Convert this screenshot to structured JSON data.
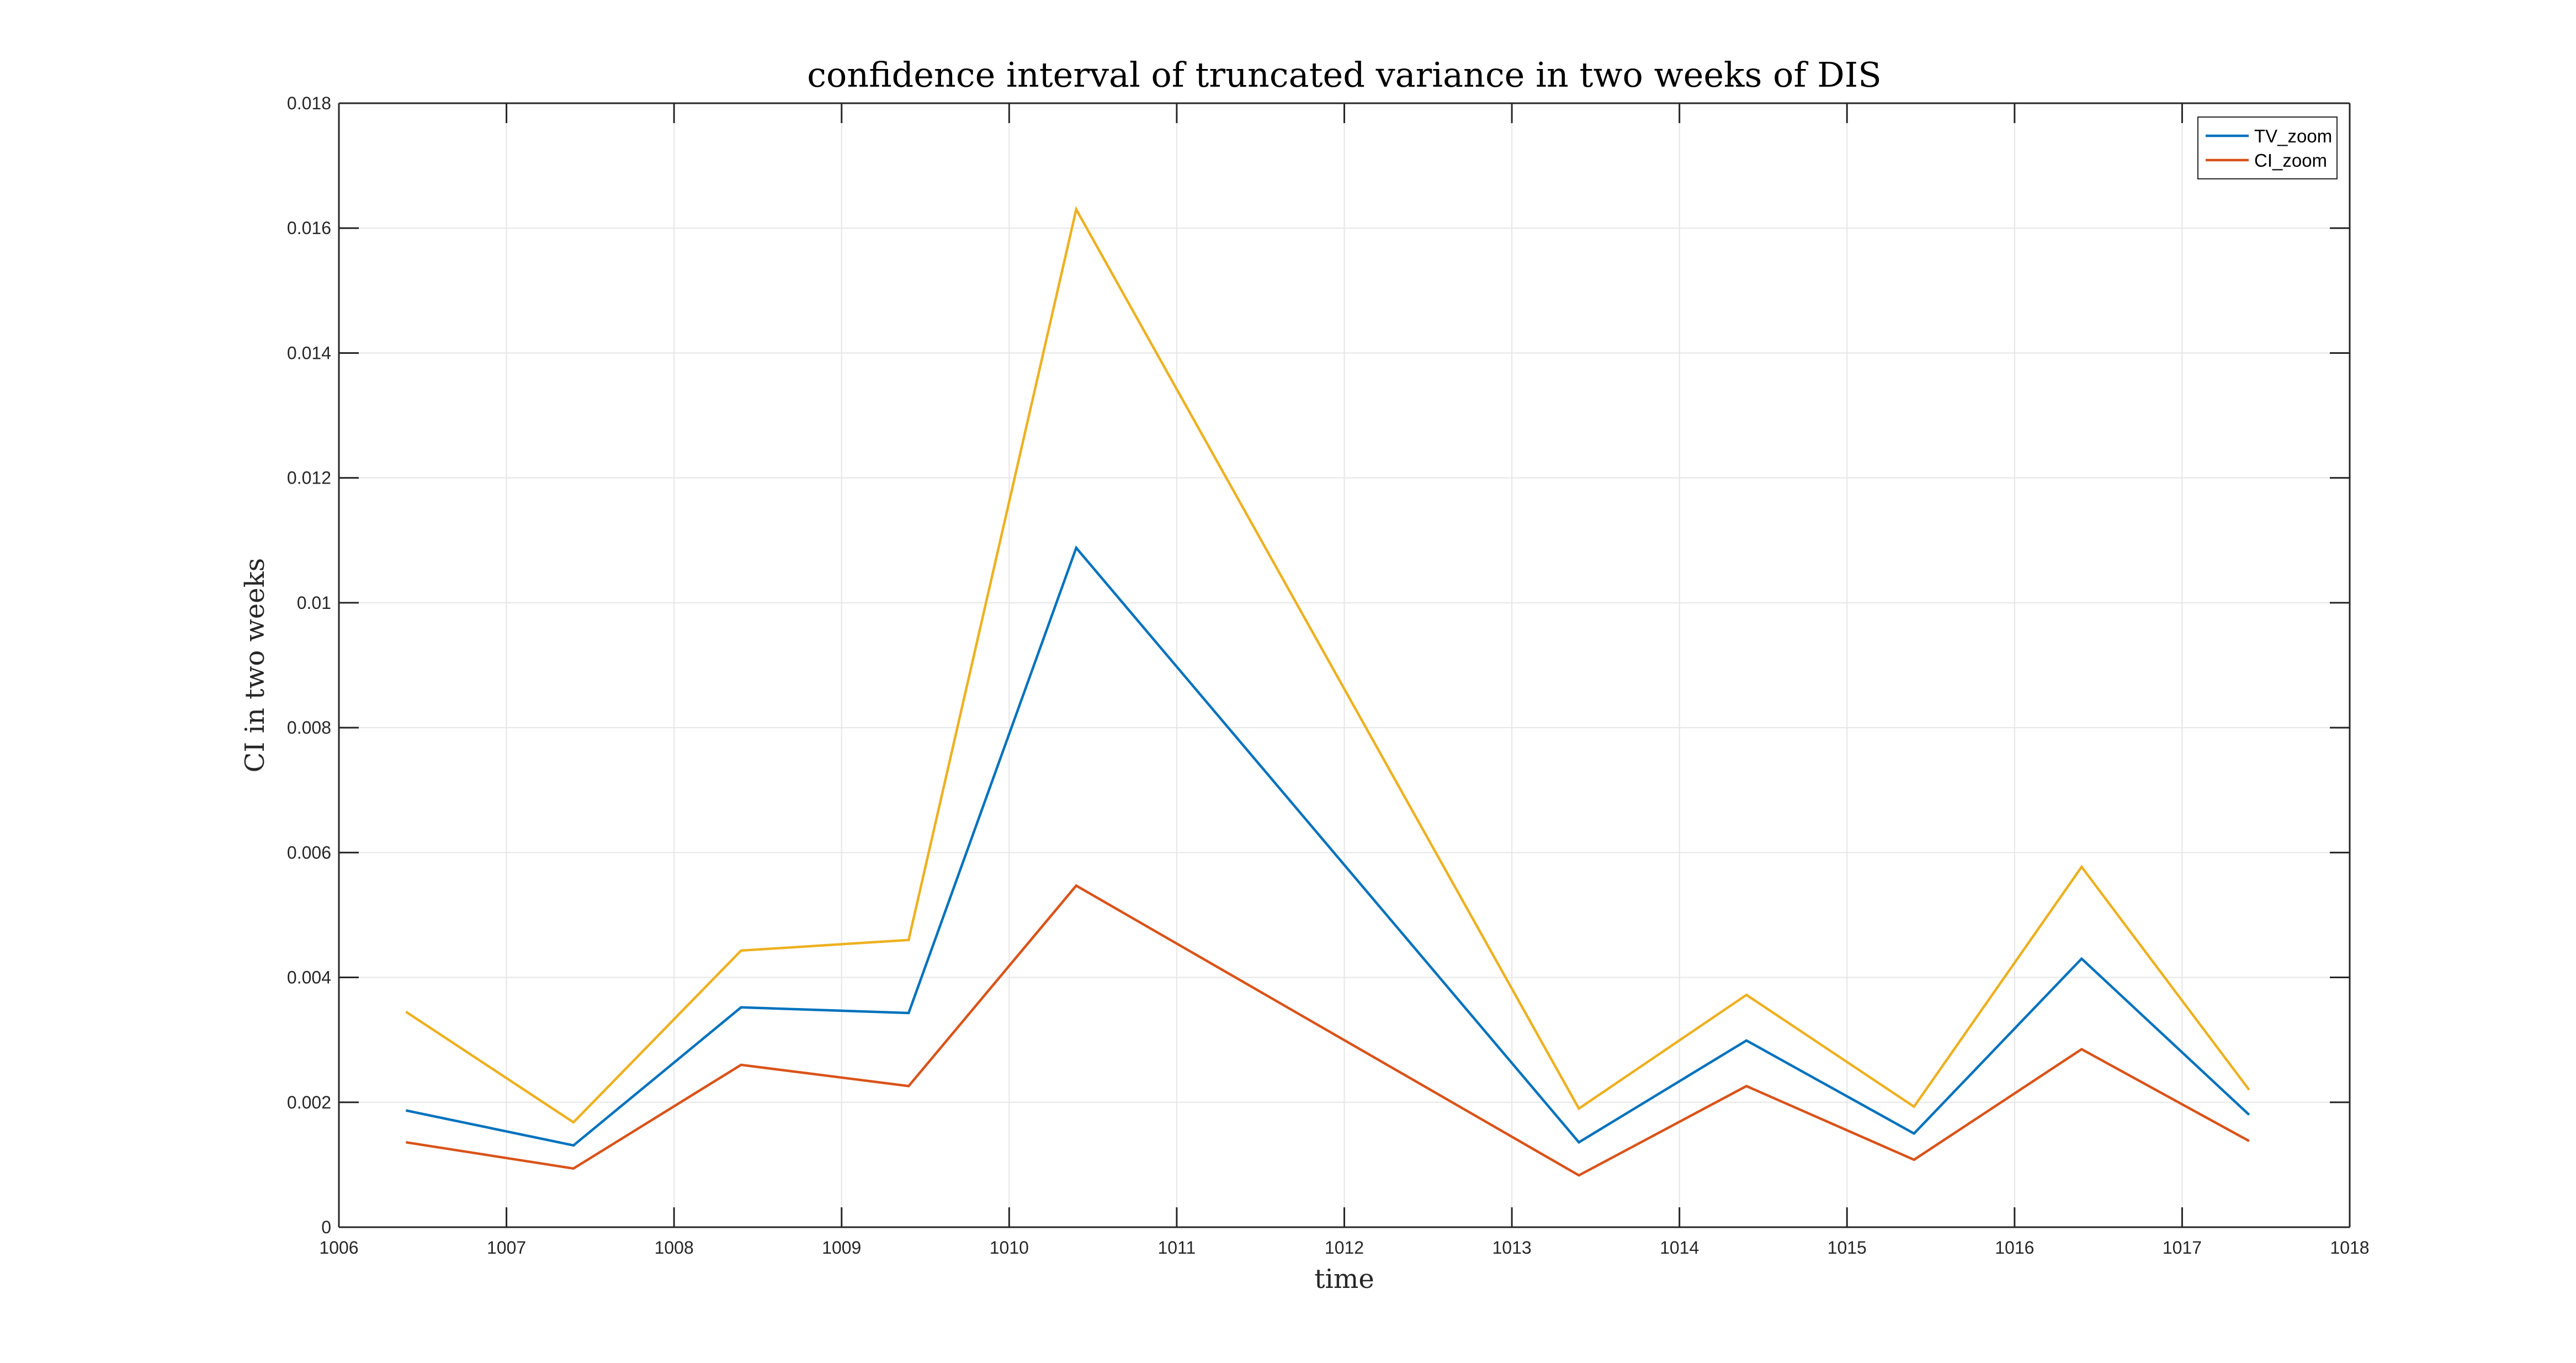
{
  "chart_data": {
    "type": "line",
    "title": "confidence interval of truncated variance in two weeks of DIS",
    "xlabel": "time",
    "ylabel": "CI in two weeks",
    "xlim": [
      1006,
      1018
    ],
    "ylim": [
      0,
      0.018
    ],
    "xticks": [
      "1006",
      "1007",
      "1008",
      "1009",
      "1010",
      "1011",
      "1012",
      "1013",
      "1014",
      "1015",
      "1016",
      "1017",
      "1018"
    ],
    "yticks": [
      "0",
      "0.002",
      "0.004",
      "0.006",
      "0.008",
      "0.01",
      "0.012",
      "0.014",
      "0.016",
      "0.018"
    ],
    "grid": true,
    "legend_position": "top-right",
    "x": [
      1006.4,
      1007.4,
      1008.4,
      1009.4,
      1010.4,
      1013.4,
      1014.4,
      1015.4,
      1016.4,
      1017.4
    ],
    "series": [
      {
        "name": "TV_zoom",
        "color": "#0072BD",
        "values": [
          0.00187,
          0.00131,
          0.00352,
          0.00343,
          0.01088,
          0.00136,
          0.00299,
          0.0015,
          0.0043,
          0.0018
        ]
      },
      {
        "name": "CI_zoom",
        "color": "#D95319",
        "values": [
          0.00136,
          0.00094,
          0.0026,
          0.00226,
          0.00547,
          0.00083,
          0.00226,
          0.00108,
          0.00285,
          0.00138
        ]
      },
      {
        "color": "#EDB120",
        "values": [
          0.00345,
          0.00168,
          0.00443,
          0.0046,
          0.0163,
          0.0019,
          0.00372,
          0.00193,
          0.00577,
          0.0022
        ]
      }
    ]
  }
}
